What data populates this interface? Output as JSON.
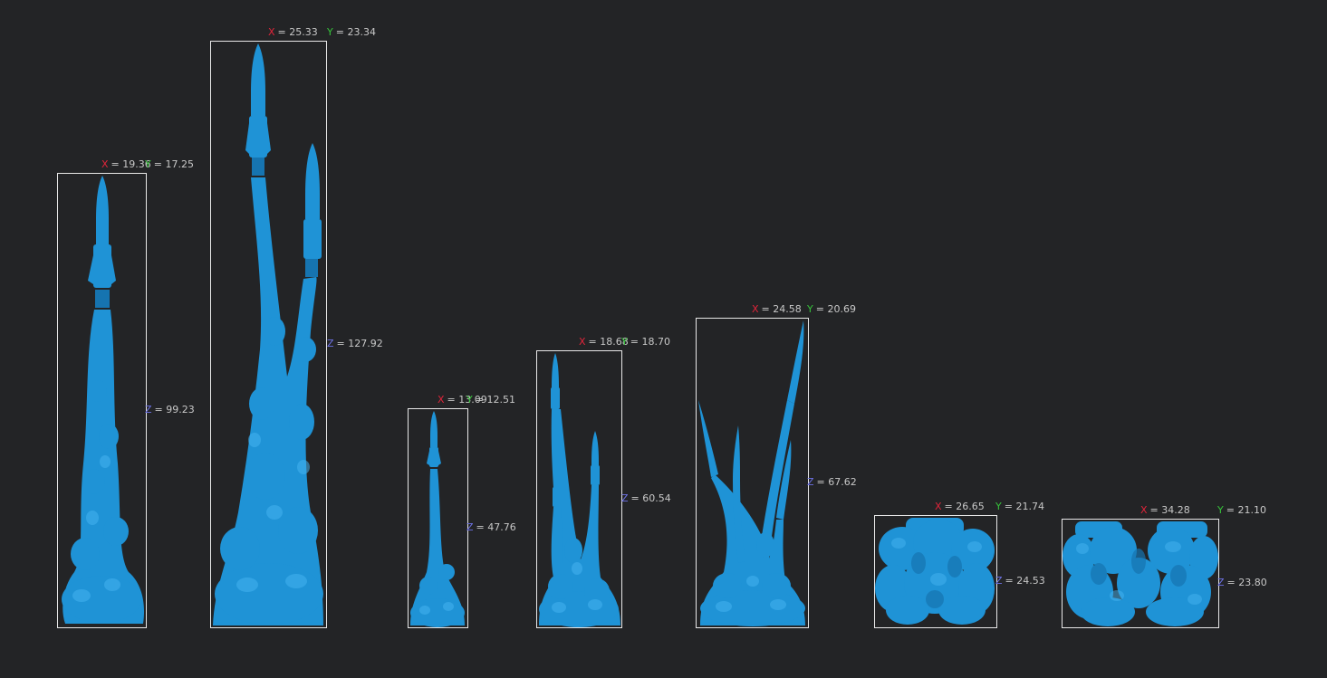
{
  "colors": {
    "background": "#232426",
    "bbox_outline": "#e8e8e8",
    "model_fill": "#1f93d6",
    "model_dark": "#1674b0",
    "model_light": "#45b3f0",
    "axis_x": "#e0243a",
    "axis_y": "#36c23a",
    "axis_z": "#6d72e6",
    "text": "#c8c8c8"
  },
  "axis_labels": {
    "x": "X",
    "y": "Y",
    "z": "Z"
  },
  "models": [
    {
      "name": "single-rocket-tall",
      "rockets": 1,
      "x": "= 19.36",
      "y": "= 17.25",
      "z": "= 99.23"
    },
    {
      "name": "twin-rockets-tall",
      "rockets": 2,
      "x": "= 25.33",
      "y": "= 23.34",
      "z": "= 127.92"
    },
    {
      "name": "single-rocket-small",
      "rockets": 1,
      "x": "= 13.09",
      "y": "= 12.51",
      "z": "= 47.76"
    },
    {
      "name": "triple-rockets",
      "rockets": 3,
      "x": "= 18.68",
      "y": "= 18.70",
      "z": "= 60.54"
    },
    {
      "name": "quad-rockets-spread",
      "rockets": 4,
      "x": "= 24.58",
      "y": "= 20.69",
      "z": "= 67.62"
    },
    {
      "name": "smoke-base-single",
      "rockets": 0,
      "x": "= 26.65",
      "y": "= 21.74",
      "z": "= 24.53"
    },
    {
      "name": "smoke-base-double",
      "rockets": 0,
      "x": "= 34.28",
      "y": "= 21.10",
      "z": "= 23.80"
    }
  ]
}
